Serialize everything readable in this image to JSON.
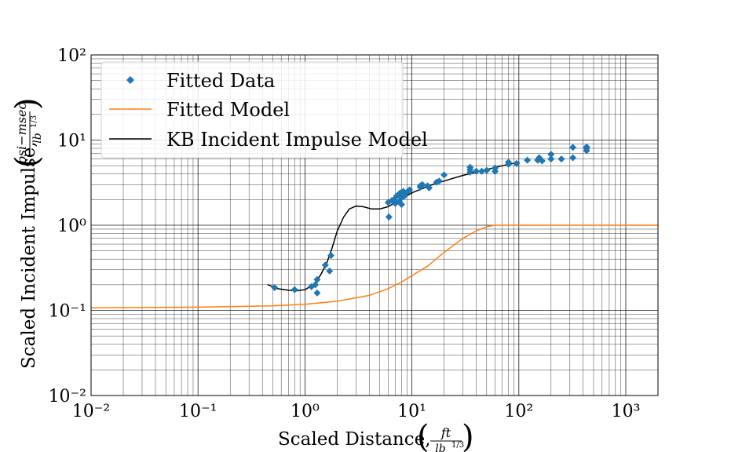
{
  "chart_data": {
    "type": "scatter",
    "xlabel_prefix": "Scaled Distance,",
    "xlabel_unit_num": "ft",
    "xlabel_unit_den": "lb",
    "xlabel_unit_exp": "1/3",
    "ylabel_prefix": "Scaled Incident Impulse,",
    "ylabel_unit_num": "psi−msec",
    "ylabel_unit_den": "lb",
    "ylabel_unit_exp": "1/3",
    "x_scale": "log",
    "y_scale": "log",
    "xlim": [
      0.01,
      2000
    ],
    "ylim": [
      0.01,
      100
    ],
    "x_tick_labels": [
      "10⁻²",
      "10⁻¹",
      "10⁰",
      "10¹",
      "10²",
      "10³"
    ],
    "y_tick_labels": [
      "10⁻²",
      "10⁻¹",
      "10⁰",
      "10¹",
      "10²"
    ],
    "grid": "major and minor",
    "legend_position": "upper-left",
    "series": [
      {
        "name": "Fitted Data",
        "kind": "markers",
        "marker": "diamond",
        "color": "#1f77b4",
        "points": [
          [
            0.52,
            0.185
          ],
          [
            0.8,
            0.175
          ],
          [
            1.15,
            0.19
          ],
          [
            1.25,
            0.2
          ],
          [
            1.3,
            0.23
          ],
          [
            1.3,
            0.16
          ],
          [
            1.55,
            0.34
          ],
          [
            1.7,
            0.29
          ],
          [
            1.75,
            0.44
          ],
          [
            6.0,
            1.85
          ],
          [
            6.1,
            1.25
          ],
          [
            6.5,
            1.95
          ],
          [
            6.8,
            2.0
          ],
          [
            7.0,
            1.8
          ],
          [
            7.2,
            2.2
          ],
          [
            7.5,
            2.3
          ],
          [
            7.6,
            1.9
          ],
          [
            7.8,
            2.4
          ],
          [
            8.0,
            2.1
          ],
          [
            8.0,
            1.75
          ],
          [
            8.3,
            2.5
          ],
          [
            8.5,
            2.2
          ],
          [
            9.0,
            2.45
          ],
          [
            9.5,
            2.6
          ],
          [
            12.0,
            2.8
          ],
          [
            12.0,
            2.9
          ],
          [
            12.5,
            3.0
          ],
          [
            14.0,
            2.9
          ],
          [
            14.5,
            2.75
          ],
          [
            17.0,
            3.2
          ],
          [
            18.0,
            3.3
          ],
          [
            20.0,
            3.9
          ],
          [
            35.0,
            4.2
          ],
          [
            35.0,
            4.5
          ],
          [
            35.0,
            4.8
          ],
          [
            40.0,
            4.3
          ],
          [
            45.0,
            4.3
          ],
          [
            50.0,
            4.4
          ],
          [
            60.0,
            4.3
          ],
          [
            60.0,
            4.7
          ],
          [
            80.0,
            5.2
          ],
          [
            80.0,
            5.5
          ],
          [
            95.0,
            5.3
          ],
          [
            120.0,
            5.8
          ],
          [
            150.0,
            5.8
          ],
          [
            155.0,
            6.2
          ],
          [
            165.0,
            5.7
          ],
          [
            200.0,
            6.0
          ],
          [
            200.0,
            6.8
          ],
          [
            250.0,
            6.0
          ],
          [
            320.0,
            6.2
          ],
          [
            320.0,
            8.2
          ],
          [
            430.0,
            7.5
          ],
          [
            430.0,
            8.0
          ],
          [
            430.0,
            8.3
          ]
        ]
      },
      {
        "name": "Fitted Model",
        "kind": "line",
        "color": "#ff7f0e",
        "points": [
          [
            0.01,
            0.107
          ],
          [
            0.1,
            0.109
          ],
          [
            0.5,
            0.113
          ],
          [
            1.0,
            0.118
          ],
          [
            2.0,
            0.128
          ],
          [
            4.0,
            0.15
          ],
          [
            6.0,
            0.18
          ],
          [
            8.0,
            0.215
          ],
          [
            10.0,
            0.255
          ],
          [
            14.0,
            0.33
          ],
          [
            20.0,
            0.48
          ],
          [
            30.0,
            0.7
          ],
          [
            40.0,
            0.86
          ],
          [
            50.0,
            0.96
          ],
          [
            60.0,
            1.0
          ],
          [
            100.0,
            1.0
          ],
          [
            2000.0,
            1.0
          ]
        ]
      },
      {
        "name": "KB Incident Impulse Model",
        "kind": "line",
        "color": "#000000",
        "points": [
          [
            0.45,
            0.2
          ],
          [
            0.55,
            0.18
          ],
          [
            0.7,
            0.172
          ],
          [
            0.85,
            0.17
          ],
          [
            1.0,
            0.175
          ],
          [
            1.2,
            0.2
          ],
          [
            1.4,
            0.26
          ],
          [
            1.6,
            0.36
          ],
          [
            1.8,
            0.55
          ],
          [
            2.0,
            0.85
          ],
          [
            2.3,
            1.25
          ],
          [
            2.6,
            1.55
          ],
          [
            3.0,
            1.68
          ],
          [
            3.5,
            1.65
          ],
          [
            4.2,
            1.55
          ],
          [
            5.0,
            1.55
          ],
          [
            6.0,
            1.65
          ],
          [
            7.0,
            1.85
          ],
          [
            8.0,
            2.05
          ],
          [
            10.0,
            2.4
          ],
          [
            15.0,
            2.95
          ],
          [
            20.0,
            3.3
          ],
          [
            30.0,
            3.85
          ],
          [
            50.0,
            4.5
          ],
          [
            70.0,
            5.0
          ],
          [
            100.0,
            5.5
          ]
        ]
      }
    ]
  }
}
